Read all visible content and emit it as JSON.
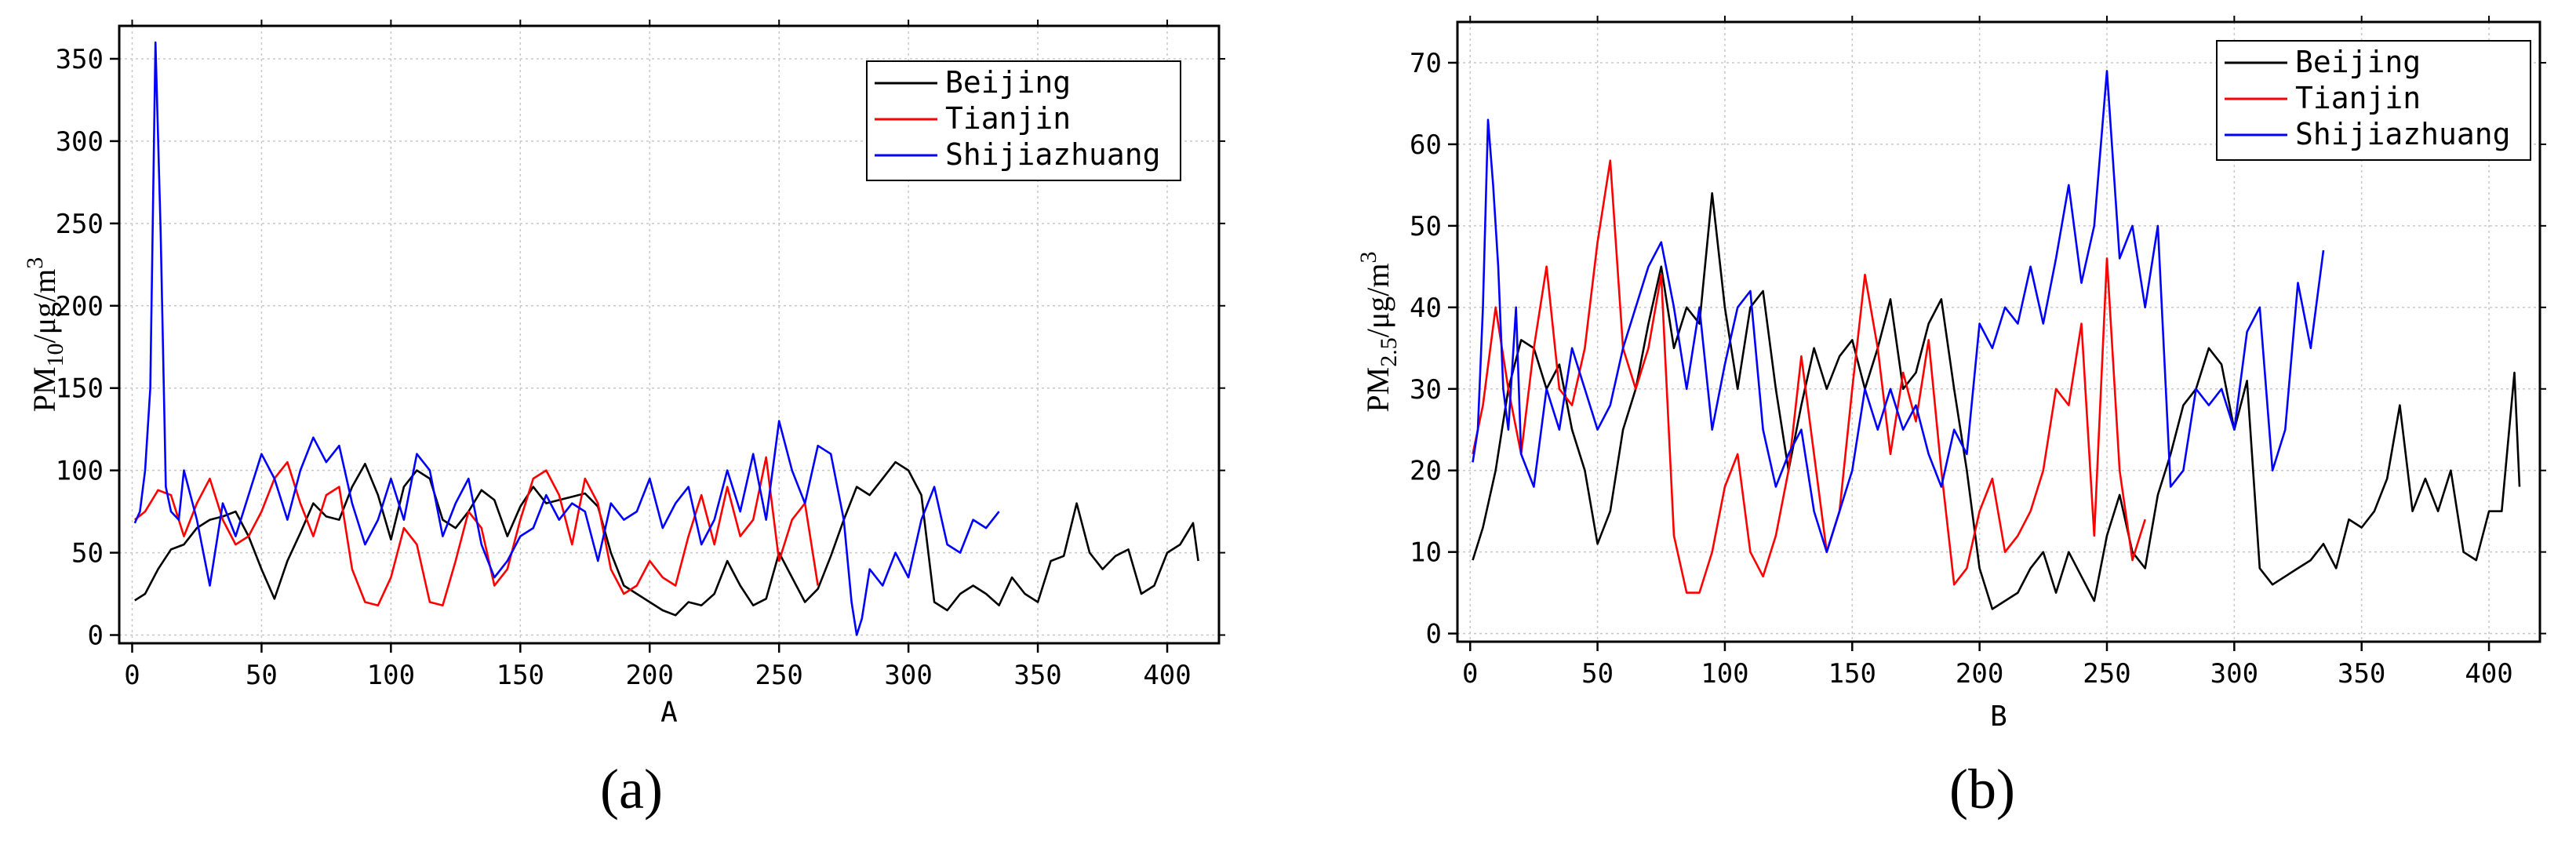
{
  "chart_data": [
    {
      "type": "line",
      "panel_label": "(a)",
      "xlabel": "A",
      "ylabel_parts": {
        "base": "PM",
        "sub": "10",
        "unit": "/μg/m",
        "sup": "3"
      },
      "xlim": [
        -5,
        420
      ],
      "ylim": [
        -5,
        370
      ],
      "xticks": [
        0,
        50,
        100,
        150,
        200,
        250,
        300,
        350,
        400
      ],
      "yticks": [
        0,
        50,
        100,
        150,
        200,
        250,
        300,
        350
      ],
      "grid": true,
      "legend_position": "top-right",
      "series": [
        {
          "name": "Beijing",
          "color": "#000000",
          "x": [
            1,
            5,
            10,
            15,
            20,
            25,
            30,
            35,
            40,
            45,
            50,
            55,
            60,
            65,
            70,
            75,
            80,
            85,
            90,
            95,
            100,
            105,
            110,
            115,
            120,
            125,
            130,
            135,
            140,
            145,
            150,
            155,
            160,
            165,
            170,
            175,
            180,
            185,
            190,
            195,
            200,
            205,
            210,
            215,
            220,
            225,
            230,
            235,
            240,
            245,
            250,
            255,
            260,
            265,
            270,
            275,
            280,
            285,
            290,
            295,
            300,
            305,
            310,
            315,
            320,
            325,
            330,
            335,
            340,
            345,
            350,
            355,
            360,
            365,
            370,
            375,
            380,
            385,
            390,
            395,
            400,
            405,
            410,
            412
          ],
          "y": [
            21,
            25,
            40,
            52,
            55,
            65,
            70,
            72,
            75,
            60,
            40,
            22,
            45,
            62,
            80,
            72,
            70,
            90,
            104,
            85,
            58,
            90,
            100,
            95,
            70,
            65,
            75,
            88,
            82,
            60,
            78,
            90,
            80,
            82,
            84,
            86,
            78,
            50,
            30,
            25,
            20,
            15,
            12,
            20,
            18,
            25,
            45,
            30,
            18,
            22,
            50,
            35,
            20,
            28,
            48,
            70,
            90,
            85,
            95,
            105,
            100,
            85,
            20,
            15,
            25,
            30,
            25,
            18,
            35,
            25,
            20,
            45,
            48,
            80,
            50,
            40,
            48,
            52,
            25,
            30,
            50,
            55,
            68,
            45
          ]
        },
        {
          "name": "Tianjin",
          "color": "#ff0000",
          "x": [
            1,
            5,
            10,
            15,
            20,
            25,
            30,
            35,
            40,
            45,
            50,
            55,
            60,
            65,
            70,
            75,
            80,
            85,
            90,
            95,
            100,
            105,
            110,
            115,
            120,
            125,
            130,
            135,
            140,
            145,
            150,
            155,
            160,
            165,
            170,
            175,
            180,
            185,
            190,
            195,
            200,
            205,
            210,
            215,
            220,
            225,
            230,
            235,
            240,
            245,
            250,
            255,
            260,
            265
          ],
          "y": [
            70,
            75,
            88,
            85,
            60,
            80,
            95,
            70,
            55,
            60,
            75,
            95,
            105,
            80,
            60,
            85,
            90,
            40,
            20,
            18,
            35,
            65,
            55,
            20,
            18,
            45,
            75,
            65,
            30,
            40,
            70,
            95,
            100,
            85,
            55,
            95,
            80,
            40,
            25,
            30,
            45,
            35,
            30,
            60,
            85,
            55,
            90,
            60,
            70,
            108,
            45,
            70,
            80,
            30
          ]
        },
        {
          "name": "Shijiazhuang",
          "color": "#0000ff",
          "x": [
            1,
            3,
            5,
            7,
            9,
            11,
            13,
            15,
            18,
            20,
            25,
            30,
            35,
            40,
            45,
            50,
            55,
            60,
            65,
            70,
            75,
            80,
            85,
            90,
            95,
            100,
            105,
            110,
            115,
            120,
            125,
            130,
            135,
            140,
            145,
            150,
            155,
            160,
            165,
            170,
            175,
            180,
            185,
            190,
            195,
            200,
            205,
            210,
            215,
            220,
            225,
            230,
            235,
            240,
            245,
            250,
            255,
            260,
            265,
            270,
            275,
            278,
            280,
            282,
            285,
            290,
            295,
            300,
            305,
            310,
            315,
            320,
            325,
            330,
            335
          ],
          "y": [
            68,
            75,
            100,
            150,
            360,
            245,
            90,
            75,
            70,
            100,
            70,
            30,
            80,
            60,
            85,
            110,
            95,
            70,
            100,
            120,
            105,
            115,
            80,
            55,
            70,
            95,
            70,
            110,
            100,
            60,
            80,
            95,
            55,
            35,
            45,
            60,
            65,
            85,
            70,
            80,
            75,
            45,
            80,
            70,
            75,
            95,
            65,
            80,
            90,
            55,
            70,
            100,
            75,
            110,
            70,
            130,
            100,
            80,
            115,
            110,
            70,
            20,
            0,
            10,
            40,
            30,
            50,
            35,
            70,
            90,
            55,
            50,
            70,
            65,
            75
          ]
        }
      ]
    },
    {
      "type": "line",
      "panel_label": "(b)",
      "xlabel": "B",
      "ylabel_parts": {
        "base": "PM",
        "sub": "2.5",
        "unit": "/μg/m",
        "sup": "3"
      },
      "xlim": [
        -5,
        420
      ],
      "ylim": [
        -1,
        75
      ],
      "xticks": [
        0,
        50,
        100,
        150,
        200,
        250,
        300,
        350,
        400
      ],
      "yticks": [
        0,
        10,
        20,
        30,
        40,
        50,
        60,
        70
      ],
      "grid": true,
      "legend_position": "top-right",
      "series": [
        {
          "name": "Beijing",
          "color": "#000000",
          "x": [
            1,
            5,
            10,
            15,
            20,
            25,
            30,
            35,
            40,
            45,
            50,
            55,
            60,
            65,
            70,
            75,
            80,
            85,
            90,
            95,
            100,
            105,
            110,
            115,
            120,
            125,
            130,
            135,
            140,
            145,
            150,
            155,
            160,
            165,
            170,
            175,
            180,
            185,
            190,
            195,
            200,
            205,
            210,
            215,
            220,
            225,
            230,
            235,
            240,
            245,
            250,
            255,
            260,
            265,
            270,
            275,
            280,
            285,
            290,
            295,
            300,
            305,
            310,
            315,
            320,
            325,
            330,
            335,
            340,
            345,
            350,
            355,
            360,
            365,
            370,
            375,
            380,
            385,
            390,
            395,
            400,
            405,
            410,
            412
          ],
          "y": [
            9,
            13,
            20,
            30,
            36,
            35,
            30,
            33,
            25,
            20,
            11,
            15,
            25,
            30,
            38,
            45,
            35,
            40,
            38,
            54,
            40,
            30,
            40,
            42,
            30,
            20,
            28,
            35,
            30,
            34,
            36,
            30,
            35,
            41,
            30,
            32,
            38,
            41,
            30,
            20,
            8,
            3,
            4,
            5,
            8,
            10,
            5,
            10,
            7,
            4,
            12,
            17,
            10,
            8,
            17,
            22,
            28,
            30,
            35,
            33,
            25,
            31,
            8,
            6,
            7,
            8,
            9,
            11,
            8,
            14,
            13,
            15,
            19,
            28,
            15,
            19,
            15,
            20,
            10,
            9,
            15,
            15,
            32,
            18
          ]
        },
        {
          "name": "Tianjin",
          "color": "#ff0000",
          "x": [
            1,
            5,
            10,
            15,
            20,
            25,
            30,
            35,
            40,
            45,
            50,
            55,
            60,
            65,
            70,
            75,
            80,
            85,
            90,
            95,
            100,
            105,
            110,
            115,
            120,
            125,
            130,
            135,
            140,
            145,
            150,
            155,
            160,
            165,
            170,
            175,
            180,
            185,
            190,
            195,
            200,
            205,
            210,
            215,
            220,
            225,
            230,
            235,
            240,
            245,
            250,
            255,
            260,
            265
          ],
          "y": [
            22,
            28,
            40,
            30,
            22,
            35,
            45,
            30,
            28,
            35,
            48,
            58,
            35,
            30,
            35,
            44,
            12,
            5,
            5,
            10,
            18,
            22,
            10,
            7,
            12,
            20,
            34,
            22,
            10,
            15,
            30,
            44,
            35,
            22,
            32,
            26,
            36,
            20,
            6,
            8,
            15,
            19,
            10,
            12,
            15,
            20,
            30,
            28,
            38,
            12,
            46,
            20,
            9,
            14
          ]
        },
        {
          "name": "Shijiazhuang",
          "color": "#0000ff",
          "x": [
            1,
            3,
            5,
            7,
            9,
            11,
            13,
            15,
            18,
            20,
            25,
            30,
            35,
            40,
            45,
            50,
            55,
            60,
            65,
            70,
            75,
            80,
            85,
            90,
            95,
            100,
            105,
            110,
            115,
            120,
            125,
            130,
            135,
            140,
            145,
            150,
            155,
            160,
            165,
            170,
            175,
            180,
            185,
            190,
            195,
            200,
            205,
            210,
            215,
            220,
            225,
            230,
            235,
            240,
            245,
            250,
            255,
            260,
            265,
            270,
            275,
            280,
            285,
            290,
            295,
            300,
            305,
            310,
            315,
            320,
            325,
            330,
            335
          ],
          "y": [
            21,
            25,
            40,
            63,
            55,
            45,
            30,
            25,
            40,
            22,
            18,
            30,
            25,
            35,
            30,
            25,
            28,
            35,
            40,
            45,
            48,
            40,
            30,
            40,
            25,
            33,
            40,
            42,
            25,
            18,
            22,
            25,
            15,
            10,
            15,
            20,
            30,
            25,
            30,
            25,
            28,
            22,
            18,
            25,
            22,
            38,
            35,
            40,
            38,
            45,
            38,
            46,
            55,
            43,
            50,
            69,
            46,
            50,
            40,
            50,
            18,
            20,
            30,
            28,
            30,
            25,
            37,
            40,
            20,
            25,
            43,
            35,
            47
          ]
        }
      ]
    }
  ]
}
